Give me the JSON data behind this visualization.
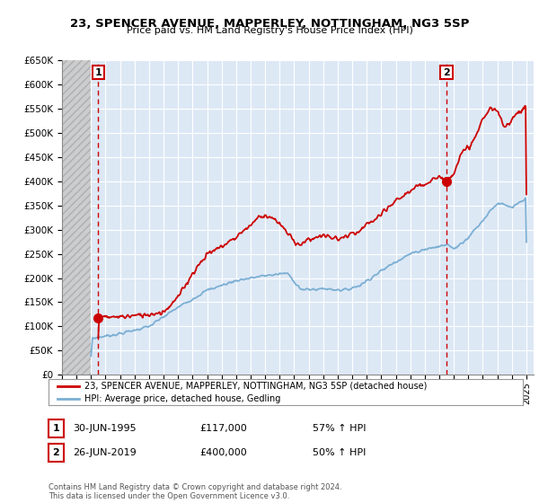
{
  "title": "23, SPENCER AVENUE, MAPPERLEY, NOTTINGHAM, NG3 5SP",
  "subtitle": "Price paid vs. HM Land Registry's House Price Index (HPI)",
  "legend_line1": "23, SPENCER AVENUE, MAPPERLEY, NOTTINGHAM, NG3 5SP (detached house)",
  "legend_line2": "HPI: Average price, detached house, Gedling",
  "sale1_date": "30-JUN-1995",
  "sale1_price": "£117,000",
  "sale1_hpi": "57% ↑ HPI",
  "sale2_date": "26-JUN-2019",
  "sale2_price": "£400,000",
  "sale2_hpi": "50% ↑ HPI",
  "footer": "Contains HM Land Registry data © Crown copyright and database right 2024.\nThis data is licensed under the Open Government Licence v3.0.",
  "red_color": "#cc0000",
  "blue_color": "#7bafd4",
  "bg_color": "#dde8f5",
  "grid_color": "#ffffff",
  "ylim": [
    0,
    650000
  ],
  "yticks": [
    0,
    50000,
    100000,
    150000,
    200000,
    250000,
    300000,
    350000,
    400000,
    450000,
    500000,
    550000,
    600000,
    650000
  ],
  "ytick_labels": [
    "£0",
    "£50K",
    "£100K",
    "£150K",
    "£200K",
    "£250K",
    "£300K",
    "£350K",
    "£400K",
    "£450K",
    "£500K",
    "£550K",
    "£600K",
    "£650K"
  ],
  "xticks": [
    1993,
    1994,
    1995,
    1996,
    1997,
    1998,
    1999,
    2000,
    2001,
    2002,
    2003,
    2004,
    2005,
    2006,
    2007,
    2008,
    2009,
    2010,
    2011,
    2012,
    2013,
    2014,
    2015,
    2016,
    2017,
    2018,
    2019,
    2020,
    2021,
    2022,
    2023,
    2024,
    2025
  ],
  "sale1_x": 1995.5,
  "sale1_y": 117000,
  "sale2_x": 2019.5,
  "sale2_y": 400000,
  "xlim": [
    1993,
    2025.5
  ]
}
